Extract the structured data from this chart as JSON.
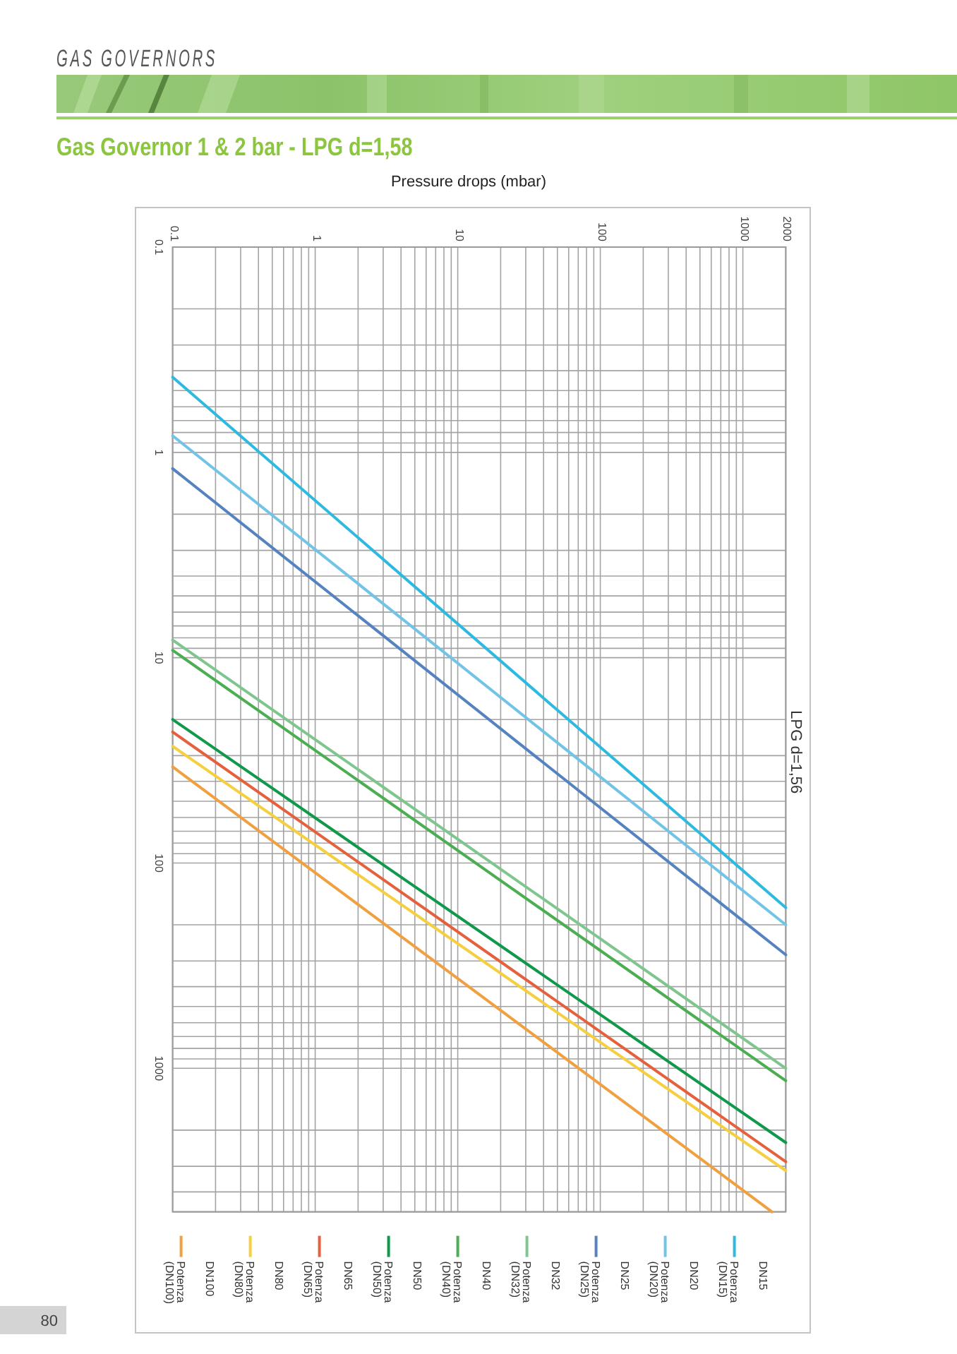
{
  "chart_data": {
    "type": "line",
    "title": "Gas Governor 1 & 2 bar - LPG d=1,58",
    "subtitle": "LPG d=1,56",
    "xlabel": "Pressure drops (mbar)",
    "annotations": [
      "GAS GOVERNORS",
      "80"
    ],
    "log": "xy",
    "grid": true,
    "legend": "bottom",
    "xlim": [
      0.1,
      2000
    ],
    "ylim": [
      5000,
      0.1
    ],
    "xticks": [
      0.1,
      {
        "value": 0.2,
        "label": null
      },
      {
        "value": 0.3,
        "label": null
      },
      {
        "value": 0.4,
        "label": null
      },
      {
        "value": 0.5,
        "label": null
      },
      {
        "value": 0.6,
        "label": null
      },
      {
        "value": 0.7,
        "label": null
      },
      {
        "value": 0.8,
        "label": null
      },
      {
        "value": 0.9,
        "label": null
      },
      1,
      {
        "value": 2,
        "label": null
      },
      {
        "value": 3,
        "label": null
      },
      {
        "value": 4,
        "label": null
      },
      {
        "value": 5,
        "label": null
      },
      {
        "value": 6,
        "label": null
      },
      {
        "value": 7,
        "label": null
      },
      {
        "value": 8,
        "label": null
      },
      {
        "value": 9,
        "label": null
      },
      10,
      {
        "value": 20,
        "label": null
      },
      {
        "value": 30,
        "label": null
      },
      {
        "value": 40,
        "label": null
      },
      {
        "value": 50,
        "label": null
      },
      {
        "value": 60,
        "label": null
      },
      {
        "value": 70,
        "label": null
      },
      {
        "value": 80,
        "label": null
      },
      {
        "value": 90,
        "label": null
      },
      100,
      {
        "value": 200,
        "label": null
      },
      {
        "value": 300,
        "label": null
      },
      {
        "value": 400,
        "label": null
      },
      {
        "value": 500,
        "label": null
      },
      {
        "value": 600,
        "label": null
      },
      {
        "value": 700,
        "label": null
      },
      {
        "value": 800,
        "label": null
      },
      {
        "value": 900,
        "label": null
      },
      1000,
      2000
    ],
    "yticks": [
      0.1,
      {
        "value": 0.2,
        "label": null
      },
      {
        "value": 0.3,
        "label": null
      },
      {
        "value": 0.4,
        "label": null
      },
      {
        "value": 0.5,
        "label": null
      },
      {
        "value": 0.6,
        "label": null
      },
      {
        "value": 0.7,
        "label": null
      },
      {
        "value": 0.8,
        "label": null
      },
      {
        "value": 0.9,
        "label": null
      },
      1,
      {
        "value": 2,
        "label": null
      },
      {
        "value": 3,
        "label": null
      },
      {
        "value": 4,
        "label": null
      },
      {
        "value": 5,
        "label": null
      },
      {
        "value": 6,
        "label": null
      },
      {
        "value": 7,
        "label": null
      },
      {
        "value": 8,
        "label": null
      },
      {
        "value": 9,
        "label": null
      },
      10,
      {
        "value": 20,
        "label": null
      },
      {
        "value": 30,
        "label": null
      },
      {
        "value": 40,
        "label": null
      },
      {
        "value": 50,
        "label": null
      },
      {
        "value": 60,
        "label": null
      },
      {
        "value": 70,
        "label": null
      },
      {
        "value": 80,
        "label": null
      },
      {
        "value": 90,
        "label": null
      },
      100,
      {
        "value": 200,
        "label": null
      },
      {
        "value": 300,
        "label": null
      },
      {
        "value": 400,
        "label": null
      },
      {
        "value": 500,
        "label": null
      },
      {
        "value": 600,
        "label": null
      },
      {
        "value": 700,
        "label": null
      },
      {
        "value": 800,
        "label": null
      },
      {
        "value": 900,
        "label": null
      },
      1000,
      {
        "value": 2000,
        "label": null
      },
      {
        "value": 3000,
        "label": null
      },
      {
        "value": 4000,
        "label": null
      },
      {
        "value": 5000,
        "label": null
      }
    ],
    "x": [
      0.1,
      2000
    ],
    "series": [
      {
        "name": "Potenza (DN100)",
        "color": "#f0a040",
        "x": [
          0.1,
          1600
        ],
        "values": [
          34,
          5000
        ]
      },
      {
        "name": "DN100",
        "values": [
          null,
          null
        ]
      },
      {
        "name": "Potenza (DN80)",
        "color": "#f5cf3f",
        "values": [
          27,
          3150
        ]
      },
      {
        "name": "DN80",
        "values": [
          null,
          null
        ]
      },
      {
        "name": "Potenza (DN65)",
        "color": "#e5603c",
        "values": [
          23,
          2850
        ]
      },
      {
        "name": "DN65",
        "values": [
          null,
          null
        ]
      },
      {
        "name": "Potenza (DN50)",
        "color": "#10994a",
        "values": [
          20,
          2300
        ]
      },
      {
        "name": "DN50",
        "values": [
          null,
          null
        ]
      },
      {
        "name": "Potenza (DN40)",
        "color": "#4cae52",
        "values": [
          9.2,
          1150
        ]
      },
      {
        "name": "DN40",
        "values": [
          null,
          null
        ]
      },
      {
        "name": "Potenza (DN32)",
        "color": "#7fc58e",
        "values": [
          8.2,
          1000
        ]
      },
      {
        "name": "DN32",
        "values": [
          null,
          null
        ]
      },
      {
        "name": "Potenza (DN25)",
        "color": "#5583c0",
        "values": [
          1.2,
          280
        ]
      },
      {
        "name": "DN25",
        "values": [
          null,
          null
        ]
      },
      {
        "name": "Potenza (DN20)",
        "color": "#72c4e6",
        "values": [
          0.83,
          200
        ]
      },
      {
        "name": "DN20",
        "values": [
          null,
          null
        ]
      },
      {
        "name": "Potenza (DN15)",
        "color": "#2db9e0",
        "values": [
          0.43,
          165
        ]
      },
      {
        "name": "DN15",
        "values": [
          null,
          null
        ]
      }
    ]
  }
}
